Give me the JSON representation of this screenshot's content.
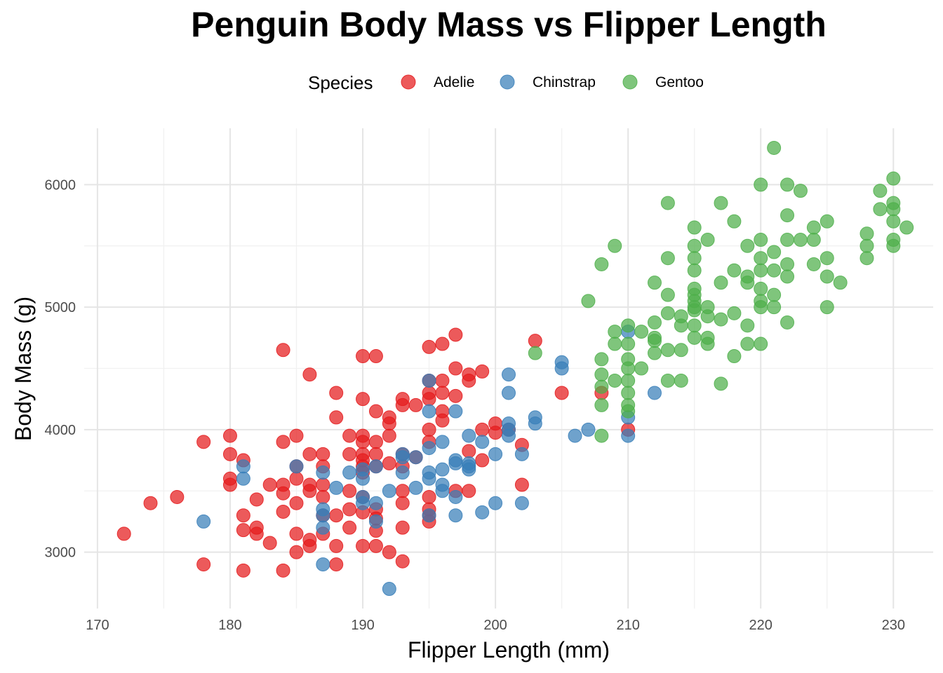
{
  "chart_data": {
    "type": "scatter",
    "title": "Penguin Body Mass vs Flipper Length",
    "xlabel": "Flipper Length (mm)",
    "ylabel": "Body Mass (g)",
    "xlim": [
      169,
      233
    ],
    "ylim": [
      2540,
      6460
    ],
    "x_ticks": [
      170,
      180,
      190,
      200,
      210,
      220,
      230
    ],
    "y_ticks": [
      3000,
      4000,
      5000,
      6000
    ],
    "x_tick_labels": [
      "170",
      "180",
      "190",
      "200",
      "210",
      "220",
      "230"
    ],
    "y_tick_labels": [
      "3000",
      "4000",
      "5000",
      "6000"
    ],
    "grid": true,
    "legend": {
      "title": "Species",
      "position": "top"
    },
    "series": [
      {
        "name": "Adelie",
        "color": "#E41A1C",
        "points": [
          [
            172,
            3150
          ],
          [
            174,
            3400
          ],
          [
            176,
            3450
          ],
          [
            178,
            3900
          ],
          [
            178,
            2900
          ],
          [
            180,
            3950
          ],
          [
            180,
            3800
          ],
          [
            180,
            3600
          ],
          [
            180,
            3550
          ],
          [
            181,
            3750
          ],
          [
            181,
            3300
          ],
          [
            181,
            3180
          ],
          [
            181,
            2850
          ],
          [
            182,
            3430
          ],
          [
            182,
            3200
          ],
          [
            182,
            3150
          ],
          [
            183,
            3550
          ],
          [
            183,
            3075
          ],
          [
            184,
            4650
          ],
          [
            184,
            3900
          ],
          [
            184,
            3550
          ],
          [
            184,
            3480
          ],
          [
            184,
            3330
          ],
          [
            184,
            2850
          ],
          [
            185,
            3950
          ],
          [
            185,
            3700
          ],
          [
            185,
            3600
          ],
          [
            185,
            3400
          ],
          [
            185,
            3150
          ],
          [
            185,
            3000
          ],
          [
            186,
            4450
          ],
          [
            186,
            3800
          ],
          [
            186,
            3550
          ],
          [
            186,
            3500
          ],
          [
            186,
            3100
          ],
          [
            186,
            3050
          ],
          [
            187,
            3800
          ],
          [
            187,
            3700
          ],
          [
            187,
            3550
          ],
          [
            187,
            3450
          ],
          [
            187,
            3300
          ],
          [
            187,
            3150
          ],
          [
            188,
            4300
          ],
          [
            188,
            4100
          ],
          [
            188,
            3300
          ],
          [
            188,
            3050
          ],
          [
            188,
            2900
          ],
          [
            189,
            3950
          ],
          [
            189,
            3800
          ],
          [
            189,
            3500
          ],
          [
            189,
            3350
          ],
          [
            189,
            3200
          ],
          [
            190,
            4600
          ],
          [
            190,
            4250
          ],
          [
            190,
            3950
          ],
          [
            190,
            3900
          ],
          [
            190,
            3800
          ],
          [
            190,
            3750
          ],
          [
            190,
            3700
          ],
          [
            190,
            3650
          ],
          [
            190,
            3450
          ],
          [
            190,
            3325
          ],
          [
            190,
            3050
          ],
          [
            191,
            4600
          ],
          [
            191,
            4150
          ],
          [
            191,
            3900
          ],
          [
            191,
            3800
          ],
          [
            191,
            3700
          ],
          [
            191,
            3350
          ],
          [
            191,
            3275
          ],
          [
            191,
            3175
          ],
          [
            191,
            3050
          ],
          [
            192,
            4100
          ],
          [
            192,
            4050
          ],
          [
            192,
            3950
          ],
          [
            192,
            3725
          ],
          [
            192,
            3000
          ],
          [
            193,
            4250
          ],
          [
            193,
            4200
          ],
          [
            193,
            3800
          ],
          [
            193,
            3700
          ],
          [
            193,
            3500
          ],
          [
            193,
            3400
          ],
          [
            193,
            3200
          ],
          [
            193,
            2925
          ],
          [
            194,
            4200
          ],
          [
            194,
            3775
          ],
          [
            195,
            4675
          ],
          [
            195,
            4400
          ],
          [
            195,
            4300
          ],
          [
            195,
            4250
          ],
          [
            195,
            4000
          ],
          [
            195,
            3900
          ],
          [
            195,
            3450
          ],
          [
            195,
            3350
          ],
          [
            195,
            3300
          ],
          [
            195,
            3250
          ],
          [
            196,
            4700
          ],
          [
            196,
            4400
          ],
          [
            196,
            4300
          ],
          [
            196,
            4150
          ],
          [
            196,
            4075
          ],
          [
            197,
            4775
          ],
          [
            197,
            4500
          ],
          [
            197,
            4275
          ],
          [
            197,
            3500
          ],
          [
            198,
            4450
          ],
          [
            198,
            4400
          ],
          [
            198,
            3825
          ],
          [
            198,
            3500
          ],
          [
            199,
            4475
          ],
          [
            199,
            4000
          ],
          [
            199,
            3750
          ],
          [
            200,
            4050
          ],
          [
            200,
            3975
          ],
          [
            201,
            4000
          ],
          [
            202,
            3875
          ],
          [
            202,
            3550
          ],
          [
            203,
            4725
          ],
          [
            205,
            4300
          ],
          [
            208,
            4300
          ],
          [
            210,
            4000
          ]
        ]
      },
      {
        "name": "Chinstrap",
        "color": "#377EB8",
        "points": [
          [
            178,
            3250
          ],
          [
            181,
            3700
          ],
          [
            181,
            3600
          ],
          [
            185,
            3700
          ],
          [
            187,
            3650
          ],
          [
            187,
            3350
          ],
          [
            187,
            3300
          ],
          [
            187,
            3200
          ],
          [
            187,
            2900
          ],
          [
            188,
            3525
          ],
          [
            189,
            3650
          ],
          [
            190,
            3675
          ],
          [
            190,
            3600
          ],
          [
            190,
            3450
          ],
          [
            190,
            3400
          ],
          [
            191,
            3700
          ],
          [
            191,
            3400
          ],
          [
            191,
            3250
          ],
          [
            192,
            3500
          ],
          [
            192,
            2700
          ],
          [
            193,
            3800
          ],
          [
            193,
            3775
          ],
          [
            193,
            3650
          ],
          [
            194,
            3775
          ],
          [
            194,
            3525
          ],
          [
            195,
            4400
          ],
          [
            195,
            4150
          ],
          [
            195,
            3850
          ],
          [
            195,
            3650
          ],
          [
            195,
            3600
          ],
          [
            195,
            3300
          ],
          [
            196,
            3900
          ],
          [
            196,
            3675
          ],
          [
            196,
            3550
          ],
          [
            196,
            3500
          ],
          [
            197,
            4150
          ],
          [
            197,
            3750
          ],
          [
            197,
            3725
          ],
          [
            197,
            3450
          ],
          [
            197,
            3300
          ],
          [
            198,
            3950
          ],
          [
            198,
            3725
          ],
          [
            198,
            3700
          ],
          [
            198,
            3675
          ],
          [
            199,
            3900
          ],
          [
            199,
            3325
          ],
          [
            200,
            3800
          ],
          [
            200,
            3400
          ],
          [
            201,
            4450
          ],
          [
            201,
            4300
          ],
          [
            201,
            4050
          ],
          [
            201,
            4000
          ],
          [
            201,
            3950
          ],
          [
            202,
            3800
          ],
          [
            202,
            3400
          ],
          [
            203,
            4100
          ],
          [
            203,
            4050
          ],
          [
            205,
            4550
          ],
          [
            205,
            4500
          ],
          [
            206,
            3950
          ],
          [
            207,
            4000
          ],
          [
            210,
            4800
          ],
          [
            210,
            4100
          ],
          [
            210,
            3950
          ],
          [
            212,
            4300
          ]
        ]
      },
      {
        "name": "Gentoo",
        "color": "#4DAF4A",
        "points": [
          [
            203,
            4625
          ],
          [
            207,
            5050
          ],
          [
            208,
            5350
          ],
          [
            208,
            4575
          ],
          [
            208,
            4450
          ],
          [
            208,
            4350
          ],
          [
            208,
            4200
          ],
          [
            208,
            3950
          ],
          [
            209,
            5500
          ],
          [
            209,
            4800
          ],
          [
            209,
            4700
          ],
          [
            209,
            4400
          ],
          [
            210,
            4850
          ],
          [
            210,
            4700
          ],
          [
            210,
            4575
          ],
          [
            210,
            4500
          ],
          [
            210,
            4400
          ],
          [
            210,
            4300
          ],
          [
            210,
            4200
          ],
          [
            210,
            4150
          ],
          [
            211,
            4800
          ],
          [
            211,
            4500
          ],
          [
            212,
            5200
          ],
          [
            212,
            4875
          ],
          [
            212,
            4750
          ],
          [
            212,
            4725
          ],
          [
            212,
            4625
          ],
          [
            213,
            5850
          ],
          [
            213,
            5400
          ],
          [
            213,
            5100
          ],
          [
            213,
            4950
          ],
          [
            213,
            4650
          ],
          [
            213,
            4400
          ],
          [
            214,
            4925
          ],
          [
            214,
            4850
          ],
          [
            214,
            4650
          ],
          [
            214,
            4400
          ],
          [
            215,
            5650
          ],
          [
            215,
            5500
          ],
          [
            215,
            5400
          ],
          [
            215,
            5300
          ],
          [
            215,
            5150
          ],
          [
            215,
            5100
          ],
          [
            215,
            5050
          ],
          [
            215,
            5000
          ],
          [
            215,
            4975
          ],
          [
            215,
            4850
          ],
          [
            215,
            4750
          ],
          [
            216,
            5550
          ],
          [
            216,
            5000
          ],
          [
            216,
            4925
          ],
          [
            216,
            4750
          ],
          [
            216,
            4700
          ],
          [
            217,
            5850
          ],
          [
            217,
            5200
          ],
          [
            217,
            4900
          ],
          [
            217,
            4375
          ],
          [
            218,
            5700
          ],
          [
            218,
            5300
          ],
          [
            218,
            4950
          ],
          [
            218,
            4600
          ],
          [
            219,
            5500
          ],
          [
            219,
            5250
          ],
          [
            219,
            5200
          ],
          [
            219,
            4850
          ],
          [
            219,
            4700
          ],
          [
            220,
            6000
          ],
          [
            220,
            5550
          ],
          [
            220,
            5400
          ],
          [
            220,
            5300
          ],
          [
            220,
            5150
          ],
          [
            220,
            5050
          ],
          [
            220,
            5000
          ],
          [
            220,
            4700
          ],
          [
            221,
            6300
          ],
          [
            221,
            5450
          ],
          [
            221,
            5300
          ],
          [
            221,
            5100
          ],
          [
            221,
            5000
          ],
          [
            222,
            6000
          ],
          [
            222,
            5750
          ],
          [
            222,
            5550
          ],
          [
            222,
            5350
          ],
          [
            222,
            5250
          ],
          [
            222,
            4875
          ],
          [
            223,
            5950
          ],
          [
            223,
            5550
          ],
          [
            224,
            5650
          ],
          [
            224,
            5550
          ],
          [
            224,
            5350
          ],
          [
            225,
            5700
          ],
          [
            225,
            5400
          ],
          [
            225,
            5250
          ],
          [
            225,
            5000
          ],
          [
            226,
            5200
          ],
          [
            228,
            5600
          ],
          [
            228,
            5500
          ],
          [
            228,
            5400
          ],
          [
            229,
            5950
          ],
          [
            229,
            5800
          ],
          [
            230,
            6050
          ],
          [
            230,
            5850
          ],
          [
            230,
            5800
          ],
          [
            230,
            5700
          ],
          [
            230,
            5550
          ],
          [
            230,
            5500
          ],
          [
            231,
            5650
          ]
        ]
      }
    ]
  }
}
